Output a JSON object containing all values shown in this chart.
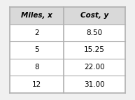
{
  "col1_header": "Miles, x",
  "col2_header": "Cost, y",
  "rows": [
    [
      "2",
      "8.50"
    ],
    [
      "5",
      "15.25"
    ],
    [
      "8",
      "22.00"
    ],
    [
      "12",
      "31.00"
    ]
  ],
  "header_bg": "#d9d9d9",
  "row_bg": "#ffffff",
  "border_color": "#b0b0b0",
  "text_color": "#000000",
  "header_fontsize": 7.5,
  "row_fontsize": 7.5,
  "fig_bg": "#f0f0f0",
  "table_bg": "#f0f0f0"
}
